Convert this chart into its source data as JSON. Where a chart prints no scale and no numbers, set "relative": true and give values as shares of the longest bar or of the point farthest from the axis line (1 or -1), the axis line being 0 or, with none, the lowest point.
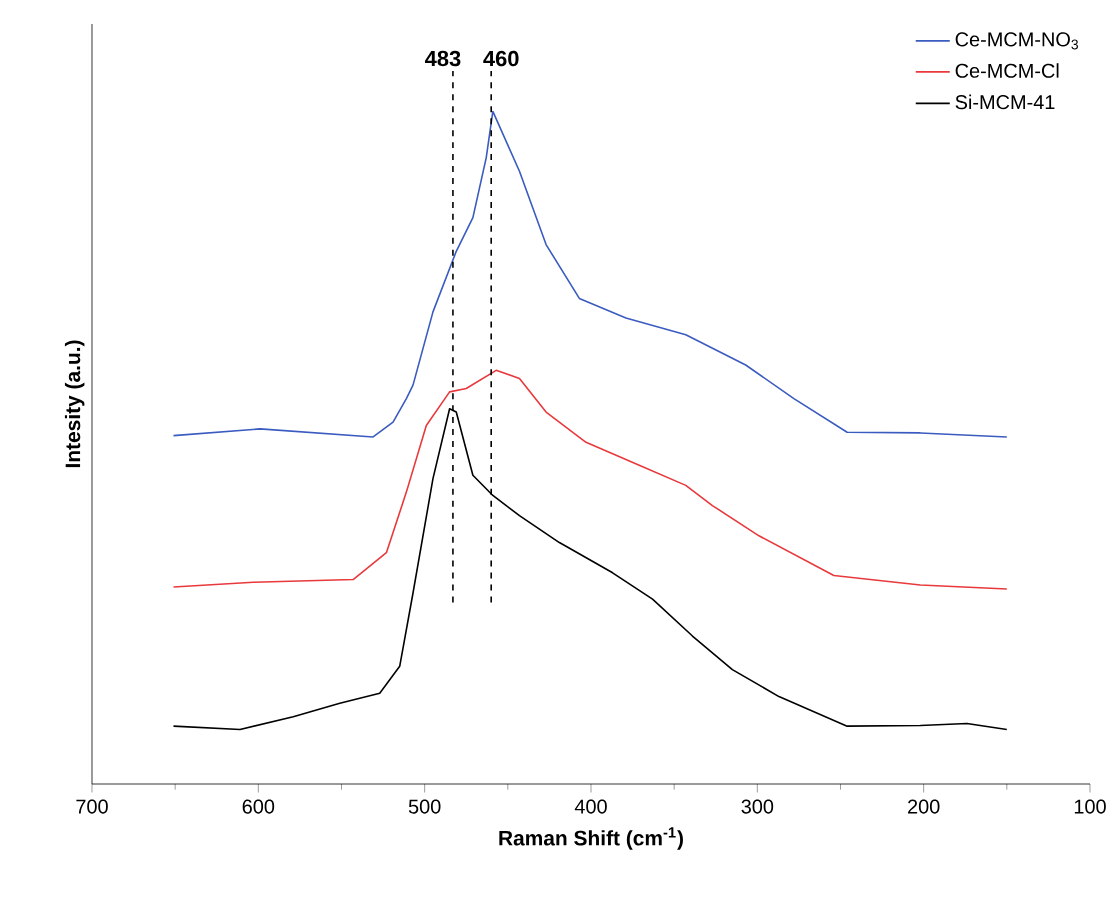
{
  "chart_data": {
    "type": "line",
    "relative": true,
    "xlabel": "Raman Shift (cm$^{-1}$)",
    "ylabel": "Intesity (a.u.)",
    "xlim": [
      700,
      100
    ],
    "xticks": [
      700,
      600,
      500,
      400,
      300,
      200,
      100
    ],
    "tick_labels": "x",
    "legend": "top right",
    "grid": false,
    "marker": "none",
    "line_style": "solid",
    "ref_lines": [
      {
        "axis": "x",
        "value": 483,
        "label": "483",
        "line_style": "dashed",
        "color": "#000000"
      },
      {
        "axis": "x",
        "value": 460,
        "label": "460",
        "line_style": "dashed",
        "color": "#000000"
      }
    ],
    "series": [
      {
        "name": "Ce-MCM-NO$_{3}$",
        "color": "#3a5bbf",
        "x": [
          651,
          599,
          531,
          519,
          511,
          507,
          495,
          481,
          471,
          463,
          459,
          443,
          427,
          407,
          379,
          343,
          307,
          278,
          246,
          202,
          150
        ],
        "values": [
          0.518,
          0.528,
          0.516,
          0.538,
          0.573,
          0.593,
          0.702,
          0.792,
          0.842,
          0.931,
          1.0,
          0.911,
          0.802,
          0.722,
          0.693,
          0.668,
          0.623,
          0.573,
          0.523,
          0.522,
          0.516
        ]
      },
      {
        "name": "Ce-MCM-Cl",
        "color": "#e8393c",
        "x": [
          651,
          603,
          543,
          523,
          511,
          499,
          485,
          475,
          457,
          443,
          427,
          403,
          371,
          343,
          327,
          299,
          254,
          202,
          150
        ],
        "values": [
          0.293,
          0.3,
          0.304,
          0.344,
          0.434,
          0.533,
          0.583,
          0.588,
          0.615,
          0.603,
          0.553,
          0.508,
          0.474,
          0.444,
          0.414,
          0.369,
          0.31,
          0.296,
          0.29
        ]
      },
      {
        "name": "Si-MCM-41",
        "color": "#000000",
        "x": [
          651,
          611,
          579,
          551,
          527,
          515,
          507,
          495,
          485,
          481,
          471,
          459,
          443,
          419,
          387,
          363,
          339,
          315,
          287,
          246,
          202,
          174,
          150
        ],
        "values": [
          0.086,
          0.081,
          0.1,
          0.12,
          0.135,
          0.175,
          0.284,
          0.454,
          0.558,
          0.553,
          0.459,
          0.429,
          0.399,
          0.359,
          0.314,
          0.275,
          0.22,
          0.17,
          0.13,
          0.086,
          0.087,
          0.09,
          0.081
        ]
      }
    ]
  }
}
